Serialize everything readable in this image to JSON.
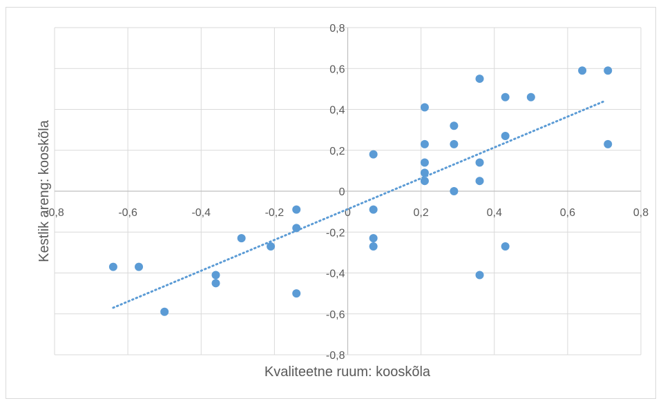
{
  "chart_data": {
    "type": "scatter",
    "title": "",
    "xlabel": "Kvaliteetne ruum: kooskõla",
    "ylabel": "Kestlik areng: kooskõla",
    "xlim": [
      -0.8,
      0.8
    ],
    "ylim": [
      -0.8,
      0.8
    ],
    "xticks": [
      -0.8,
      -0.6,
      -0.4,
      -0.2,
      0,
      0.2,
      0.4,
      0.6,
      0.8
    ],
    "yticks": [
      -0.8,
      -0.6,
      -0.4,
      -0.2,
      0,
      0.2,
      0.4,
      0.6,
      0.8
    ],
    "xtick_labels": [
      "-0,8",
      "-0,6",
      "-0,4",
      "-0,2",
      "0",
      "0,2",
      "0,4",
      "0,6",
      "0,8"
    ],
    "ytick_labels": [
      "-0,8",
      "-0,6",
      "-0,4",
      "-0,2",
      "0",
      "0,2",
      "0,4",
      "0,6",
      "0,8"
    ],
    "grid": true,
    "point_color": "#5b9bd5",
    "trendline": {
      "type": "linear",
      "style": "dotted",
      "x": [
        -0.64,
        0.7
      ],
      "y": [
        -0.57,
        0.44
      ]
    },
    "points": [
      {
        "x": -0.64,
        "y": -0.37
      },
      {
        "x": -0.57,
        "y": -0.37
      },
      {
        "x": -0.5,
        "y": -0.59
      },
      {
        "x": -0.36,
        "y": -0.41
      },
      {
        "x": -0.36,
        "y": -0.45
      },
      {
        "x": -0.29,
        "y": -0.23
      },
      {
        "x": -0.21,
        "y": -0.27
      },
      {
        "x": -0.14,
        "y": -0.09
      },
      {
        "x": -0.14,
        "y": -0.18
      },
      {
        "x": -0.14,
        "y": -0.5
      },
      {
        "x": 0.07,
        "y": 0.18
      },
      {
        "x": 0.07,
        "y": -0.09
      },
      {
        "x": 0.07,
        "y": -0.23
      },
      {
        "x": 0.07,
        "y": -0.27
      },
      {
        "x": 0.21,
        "y": 0.41
      },
      {
        "x": 0.21,
        "y": 0.23
      },
      {
        "x": 0.21,
        "y": 0.14
      },
      {
        "x": 0.21,
        "y": 0.09
      },
      {
        "x": 0.21,
        "y": 0.05
      },
      {
        "x": 0.29,
        "y": 0.32
      },
      {
        "x": 0.29,
        "y": 0.23
      },
      {
        "x": 0.29,
        "y": 0.0
      },
      {
        "x": 0.36,
        "y": 0.55
      },
      {
        "x": 0.36,
        "y": 0.14
      },
      {
        "x": 0.36,
        "y": 0.05
      },
      {
        "x": 0.36,
        "y": -0.41
      },
      {
        "x": 0.43,
        "y": 0.46
      },
      {
        "x": 0.43,
        "y": 0.27
      },
      {
        "x": 0.43,
        "y": -0.27
      },
      {
        "x": 0.5,
        "y": 0.46
      },
      {
        "x": 0.64,
        "y": 0.59
      },
      {
        "x": 0.71,
        "y": 0.59
      },
      {
        "x": 0.71,
        "y": 0.23
      }
    ]
  }
}
